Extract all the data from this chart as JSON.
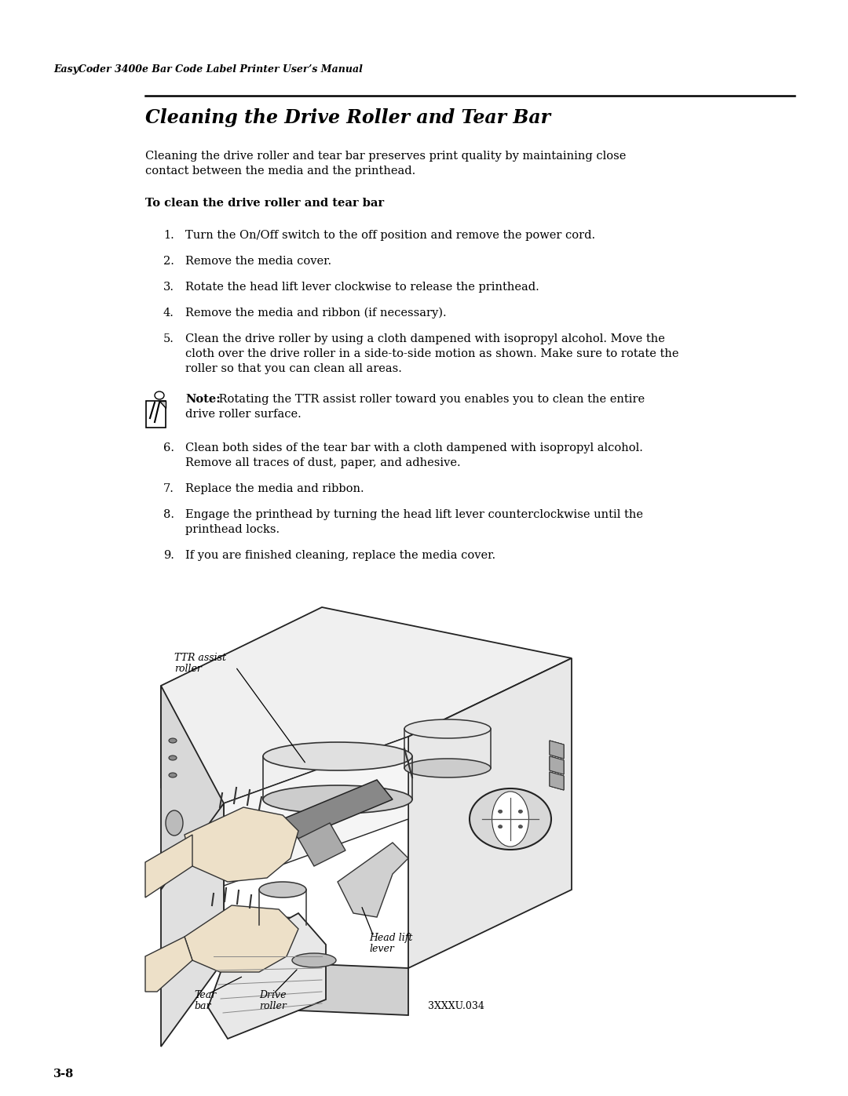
{
  "page_bg": "#ffffff",
  "header_text": "EasyCoder 3400e Bar Code Label Printer User’s Manual",
  "section_title": "Cleaning the Drive Roller and Tear Bar",
  "intro_line1": "Cleaning the drive roller and tear bar preserves print quality by maintaining close",
  "intro_line2": "contact between the media and the printhead.",
  "subheading": "To clean the drive roller and tear bar",
  "steps": [
    [
      "Turn the On/Off switch to the off position and remove the power cord."
    ],
    [
      "Remove the media cover."
    ],
    [
      "Rotate the head lift lever clockwise to release the printhead."
    ],
    [
      "Remove the media and ribbon (if necessary)."
    ],
    [
      "Clean the drive roller by using a cloth dampened with isopropyl alcohol. Move the",
      "cloth over the drive roller in a side-to-side motion as shown. Make sure to rotate the",
      "roller so that you can clean all areas."
    ],
    [
      "Clean both sides of the tear bar with a cloth dampened with isopropyl alcohol.",
      "Remove all traces of dust, paper, and adhesive."
    ],
    [
      "Replace the media and ribbon."
    ],
    [
      "Engage the printhead by turning the head lift lever counterclockwise until the",
      "printhead locks."
    ],
    [
      "If you are finished cleaning, replace the media cover."
    ]
  ],
  "note_bold": "Note:",
  "note_rest1": " Rotating the TTR assist roller toward you enables you to clean the entire",
  "note_rest2": "drive roller surface.",
  "fig_code": "3XXXU.034",
  "label_ttr1": "TTR assist",
  "label_ttr2": "roller",
  "label_head1": "Head lift",
  "label_head2": "lever",
  "label_tear1": "Tear",
  "label_tear2": "bar",
  "label_drive1": "Drive",
  "label_drive2": "roller",
  "page_number": "3-8"
}
